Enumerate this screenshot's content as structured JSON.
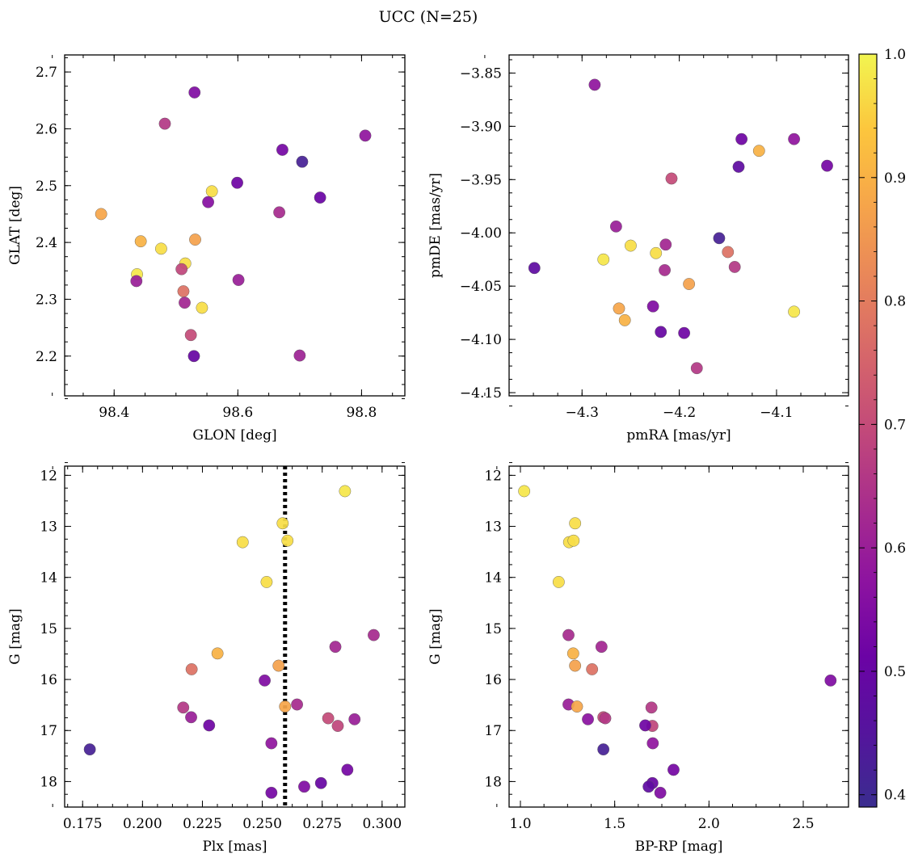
{
  "figure": {
    "title": "UCC (N=25)"
  },
  "colorbar": {
    "colormap": "plasma",
    "range": [
      0.39,
      1.0
    ],
    "ticks": [
      "0.4",
      "0.5",
      "0.6",
      "0.7",
      "0.8",
      "0.9",
      "1.0"
    ]
  },
  "chart_data": [
    {
      "type": "scatter",
      "panel": "top-left",
      "xlabel": "GLON [deg]",
      "ylabel": "GLAT [deg]",
      "xlim": [
        98.32,
        98.87
      ],
      "ylim": [
        2.13,
        2.73
      ],
      "xticks": [
        "98.4",
        "98.6",
        "98.8"
      ],
      "yticks": [
        "2.2",
        "2.3",
        "2.4",
        "2.5",
        "2.6",
        "2.7"
      ],
      "points": [
        {
          "x": 98.53,
          "y": 2.664,
          "c": 0.55
        },
        {
          "x": 98.482,
          "y": 2.609,
          "c": 0.66
        },
        {
          "x": 98.806,
          "y": 2.588,
          "c": 0.58
        },
        {
          "x": 98.672,
          "y": 2.563,
          "c": 0.53
        },
        {
          "x": 98.704,
          "y": 2.542,
          "c": 0.42
        },
        {
          "x": 98.599,
          "y": 2.505,
          "c": 0.52
        },
        {
          "x": 98.558,
          "y": 2.49,
          "c": 0.97
        },
        {
          "x": 98.733,
          "y": 2.479,
          "c": 0.51
        },
        {
          "x": 98.552,
          "y": 2.471,
          "c": 0.56
        },
        {
          "x": 98.667,
          "y": 2.453,
          "c": 0.63
        },
        {
          "x": 98.379,
          "y": 2.45,
          "c": 0.88
        },
        {
          "x": 98.531,
          "y": 2.405,
          "c": 0.87
        },
        {
          "x": 98.443,
          "y": 2.402,
          "c": 0.9
        },
        {
          "x": 98.476,
          "y": 2.389,
          "c": 0.97
        },
        {
          "x": 98.515,
          "y": 2.363,
          "c": 0.97
        },
        {
          "x": 98.509,
          "y": 2.353,
          "c": 0.69
        },
        {
          "x": 98.437,
          "y": 2.344,
          "c": 0.98
        },
        {
          "x": 98.601,
          "y": 2.334,
          "c": 0.6
        },
        {
          "x": 98.436,
          "y": 2.332,
          "c": 0.6
        },
        {
          "x": 98.512,
          "y": 2.314,
          "c": 0.78
        },
        {
          "x": 98.514,
          "y": 2.294,
          "c": 0.62
        },
        {
          "x": 98.542,
          "y": 2.285,
          "c": 0.97
        },
        {
          "x": 98.524,
          "y": 2.237,
          "c": 0.7
        },
        {
          "x": 98.529,
          "y": 2.2,
          "c": 0.5
        },
        {
          "x": 98.7,
          "y": 2.201,
          "c": 0.61
        }
      ]
    },
    {
      "type": "scatter",
      "panel": "top-right",
      "xlabel": "pmRA [mas/yr]",
      "ylabel": "pmDE [mas/yr]",
      "xlim": [
        -4.375,
        -4.026
      ],
      "ylim": [
        -4.153,
        -3.833
      ],
      "xticks": [
        "−4.3",
        "−4.2",
        "−4.1"
      ],
      "yticks": [
        "−3.85",
        "−3.90",
        "−3.95",
        "−4.00",
        "−4.05",
        "−4.10",
        "−4.15"
      ],
      "points": [
        {
          "x": -4.287,
          "y": -3.861,
          "c": 0.58
        },
        {
          "x": -4.136,
          "y": -3.912,
          "c": 0.52
        },
        {
          "x": -4.082,
          "y": -3.912,
          "c": 0.58
        },
        {
          "x": -4.118,
          "y": -3.923,
          "c": 0.9
        },
        {
          "x": -4.139,
          "y": -3.938,
          "c": 0.48
        },
        {
          "x": -4.048,
          "y": -3.937,
          "c": 0.53
        },
        {
          "x": -4.208,
          "y": -3.949,
          "c": 0.7
        },
        {
          "x": -4.265,
          "y": -3.994,
          "c": 0.6
        },
        {
          "x": -4.159,
          "y": -4.005,
          "c": 0.42
        },
        {
          "x": -4.214,
          "y": -4.011,
          "c": 0.62
        },
        {
          "x": -4.25,
          "y": -4.012,
          "c": 0.97
        },
        {
          "x": -4.15,
          "y": -4.018,
          "c": 0.78
        },
        {
          "x": -4.224,
          "y": -4.019,
          "c": 0.97
        },
        {
          "x": -4.278,
          "y": -4.025,
          "c": 0.98
        },
        {
          "x": -4.143,
          "y": -4.032,
          "c": 0.66
        },
        {
          "x": -4.349,
          "y": -4.033,
          "c": 0.48
        },
        {
          "x": -4.215,
          "y": -4.035,
          "c": 0.63
        },
        {
          "x": -4.19,
          "y": -4.048,
          "c": 0.87
        },
        {
          "x": -4.227,
          "y": -4.069,
          "c": 0.55
        },
        {
          "x": -4.262,
          "y": -4.071,
          "c": 0.88
        },
        {
          "x": -4.082,
          "y": -4.074,
          "c": 0.98
        },
        {
          "x": -4.256,
          "y": -4.082,
          "c": 0.9
        },
        {
          "x": -4.219,
          "y": -4.093,
          "c": 0.5
        },
        {
          "x": -4.195,
          "y": -4.094,
          "c": 0.52
        },
        {
          "x": -4.182,
          "y": -4.127,
          "c": 0.66
        }
      ]
    },
    {
      "type": "scatter",
      "panel": "bottom-left",
      "xlabel": "Plx [mas]",
      "ylabel": "G [mag]",
      "xlim": [
        0.1675,
        0.3095
      ],
      "ylim": [
        18.5,
        11.82
      ],
      "y_inverted": true,
      "xticks": [
        "0.175",
        "0.200",
        "0.225",
        "0.250",
        "0.275",
        "0.300"
      ],
      "yticks": [
        "12",
        "13",
        "14",
        "15",
        "16",
        "17",
        "18"
      ],
      "vline": {
        "x": 0.2595,
        "style": "dotted",
        "color": "#000000"
      },
      "points": [
        {
          "x": 0.2845,
          "y": 12.31,
          "c": 0.98
        },
        {
          "x": 0.2585,
          "y": 12.94,
          "c": 0.97
        },
        {
          "x": 0.2418,
          "y": 13.31,
          "c": 0.97
        },
        {
          "x": 0.2605,
          "y": 13.28,
          "c": 0.97
        },
        {
          "x": 0.2518,
          "y": 14.09,
          "c": 0.97
        },
        {
          "x": 0.2965,
          "y": 15.13,
          "c": 0.63
        },
        {
          "x": 0.2805,
          "y": 15.36,
          "c": 0.62
        },
        {
          "x": 0.2313,
          "y": 15.49,
          "c": 0.9
        },
        {
          "x": 0.2568,
          "y": 15.73,
          "c": 0.87
        },
        {
          "x": 0.2205,
          "y": 15.8,
          "c": 0.78
        },
        {
          "x": 0.251,
          "y": 16.02,
          "c": 0.55
        },
        {
          "x": 0.2645,
          "y": 16.49,
          "c": 0.63
        },
        {
          "x": 0.2595,
          "y": 16.53,
          "c": 0.88
        },
        {
          "x": 0.217,
          "y": 16.55,
          "c": 0.66
        },
        {
          "x": 0.2203,
          "y": 16.74,
          "c": 0.6
        },
        {
          "x": 0.2775,
          "y": 16.76,
          "c": 0.7
        },
        {
          "x": 0.2885,
          "y": 16.78,
          "c": 0.6
        },
        {
          "x": 0.2815,
          "y": 16.91,
          "c": 0.69
        },
        {
          "x": 0.2278,
          "y": 16.9,
          "c": 0.52
        },
        {
          "x": 0.2538,
          "y": 17.25,
          "c": 0.58
        },
        {
          "x": 0.178,
          "y": 17.37,
          "c": 0.42
        },
        {
          "x": 0.2855,
          "y": 17.77,
          "c": 0.53
        },
        {
          "x": 0.2745,
          "y": 18.03,
          "c": 0.5
        },
        {
          "x": 0.2675,
          "y": 18.1,
          "c": 0.55
        },
        {
          "x": 0.2538,
          "y": 18.22,
          "c": 0.53
        }
      ]
    },
    {
      "type": "scatter",
      "panel": "bottom-right",
      "xlabel": "BP-RP [mag]",
      "ylabel": "G [mag]",
      "xlim": [
        0.94,
        2.74
      ],
      "ylim": [
        18.5,
        11.82
      ],
      "y_inverted": true,
      "xticks": [
        "1.0",
        "1.5",
        "2.0",
        "2.5"
      ],
      "yticks": [
        "12",
        "13",
        "14",
        "15",
        "16",
        "17",
        "18"
      ],
      "points": [
        {
          "x": 1.02,
          "y": 12.31,
          "c": 0.98
        },
        {
          "x": 1.29,
          "y": 12.94,
          "c": 0.97
        },
        {
          "x": 1.258,
          "y": 13.31,
          "c": 0.97
        },
        {
          "x": 1.282,
          "y": 13.28,
          "c": 0.97
        },
        {
          "x": 1.203,
          "y": 14.09,
          "c": 0.97
        },
        {
          "x": 1.255,
          "y": 15.13,
          "c": 0.63
        },
        {
          "x": 1.43,
          "y": 15.36,
          "c": 0.62
        },
        {
          "x": 1.28,
          "y": 15.49,
          "c": 0.9
        },
        {
          "x": 1.29,
          "y": 15.73,
          "c": 0.87
        },
        {
          "x": 1.38,
          "y": 15.8,
          "c": 0.78
        },
        {
          "x": 2.645,
          "y": 16.02,
          "c": 0.55
        },
        {
          "x": 1.255,
          "y": 16.49,
          "c": 0.6
        },
        {
          "x": 1.3,
          "y": 16.53,
          "c": 0.88
        },
        {
          "x": 1.695,
          "y": 16.55,
          "c": 0.66
        },
        {
          "x": 1.44,
          "y": 16.74,
          "c": 0.7
        },
        {
          "x": 1.45,
          "y": 16.76,
          "c": 0.66
        },
        {
          "x": 1.358,
          "y": 16.78,
          "c": 0.57
        },
        {
          "x": 1.7,
          "y": 16.91,
          "c": 0.69
        },
        {
          "x": 1.662,
          "y": 16.9,
          "c": 0.52
        },
        {
          "x": 1.702,
          "y": 17.25,
          "c": 0.58
        },
        {
          "x": 1.44,
          "y": 17.37,
          "c": 0.42
        },
        {
          "x": 1.812,
          "y": 17.77,
          "c": 0.53
        },
        {
          "x": 1.7,
          "y": 18.03,
          "c": 0.5
        },
        {
          "x": 1.68,
          "y": 18.1,
          "c": 0.48
        },
        {
          "x": 1.742,
          "y": 18.22,
          "c": 0.55
        }
      ]
    }
  ]
}
